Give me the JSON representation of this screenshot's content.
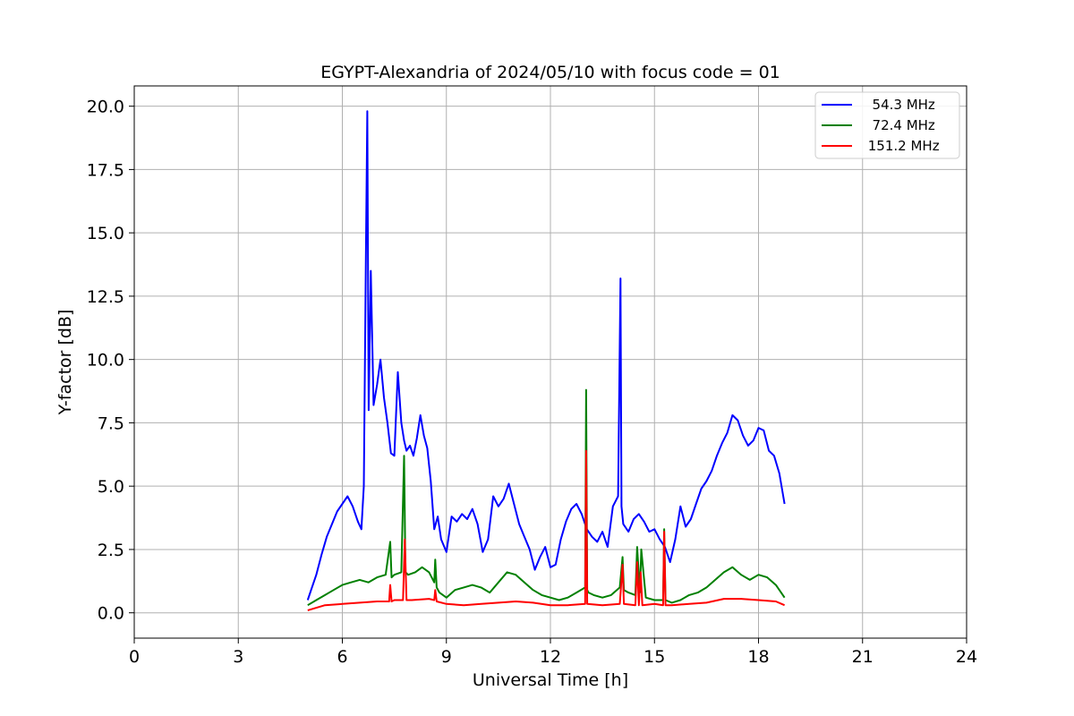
{
  "chart_data": {
    "type": "line",
    "title": "EGYPT-Alexandria of 2024/05/10 with focus code = 01",
    "xlabel": "Universal Time [h]",
    "ylabel": "Y-factor [dB]",
    "xlim": [
      0,
      24
    ],
    "ylim": [
      -1.0,
      20.8
    ],
    "xticks": [
      0,
      3,
      6,
      9,
      12,
      15,
      18,
      21,
      24
    ],
    "xtick_labels": [
      "0",
      "3",
      "6",
      "9",
      "12",
      "15",
      "18",
      "21",
      "24"
    ],
    "yticks": [
      0,
      2.5,
      5,
      7.5,
      10,
      12.5,
      15,
      17.5,
      20
    ],
    "ytick_labels": [
      "0.0",
      "2.5",
      "5.0",
      "7.5",
      "10.0",
      "12.5",
      "15.0",
      "17.5",
      "20.0"
    ],
    "grid": true,
    "legend_position": "top-right",
    "series": [
      {
        "name": "  54.3 MHz",
        "color": "#0000ff",
        "x": [
          5.0,
          5.1,
          5.25,
          5.4,
          5.55,
          5.7,
          5.85,
          6.0,
          6.15,
          6.3,
          6.45,
          6.55,
          6.62,
          6.68,
          6.72,
          6.76,
          6.82,
          6.9,
          7.0,
          7.1,
          7.2,
          7.3,
          7.4,
          7.5,
          7.6,
          7.7,
          7.78,
          7.85,
          7.95,
          8.05,
          8.15,
          8.25,
          8.35,
          8.45,
          8.55,
          8.65,
          8.75,
          8.85,
          9.0,
          9.15,
          9.3,
          9.45,
          9.6,
          9.75,
          9.9,
          10.05,
          10.2,
          10.35,
          10.5,
          10.65,
          10.8,
          10.95,
          11.1,
          11.25,
          11.4,
          11.55,
          11.7,
          11.85,
          12.0,
          12.15,
          12.3,
          12.45,
          12.6,
          12.75,
          12.9,
          13.05,
          13.2,
          13.35,
          13.5,
          13.65,
          13.8,
          13.95,
          14.02,
          14.05,
          14.1,
          14.25,
          14.4,
          14.55,
          14.7,
          14.85,
          15.0,
          15.15,
          15.3,
          15.45,
          15.6,
          15.75,
          15.9,
          16.05,
          16.2,
          16.35,
          16.5,
          16.65,
          16.8,
          16.95,
          17.1,
          17.25,
          17.4,
          17.55,
          17.7,
          17.85,
          18.0,
          18.15,
          18.3,
          18.45,
          18.6,
          18.75
        ],
        "values": [
          0.5,
          0.9,
          1.5,
          2.3,
          3.0,
          3.5,
          4.0,
          4.3,
          4.6,
          4.2,
          3.6,
          3.3,
          5.0,
          14.0,
          19.8,
          8.0,
          13.5,
          8.2,
          9.0,
          10.0,
          8.5,
          7.5,
          6.3,
          6.2,
          9.5,
          7.5,
          6.8,
          6.4,
          6.6,
          6.2,
          6.9,
          7.8,
          7.0,
          6.5,
          5.2,
          3.3,
          3.8,
          2.9,
          2.4,
          3.8,
          3.6,
          3.9,
          3.7,
          4.1,
          3.5,
          2.4,
          2.9,
          4.6,
          4.2,
          4.5,
          5.1,
          4.3,
          3.5,
          3.0,
          2.5,
          1.7,
          2.2,
          2.6,
          1.8,
          1.9,
          2.9,
          3.6,
          4.1,
          4.3,
          3.9,
          3.3,
          3.0,
          2.8,
          3.2,
          2.6,
          4.2,
          4.6,
          13.2,
          4.2,
          3.5,
          3.2,
          3.7,
          3.9,
          3.6,
          3.2,
          3.3,
          2.9,
          2.6,
          2.0,
          2.9,
          4.2,
          3.4,
          3.7,
          4.3,
          4.9,
          5.2,
          5.6,
          6.2,
          6.7,
          7.1,
          7.8,
          7.6,
          7.0,
          6.6,
          6.8,
          7.3,
          7.2,
          6.4,
          6.2,
          5.5,
          4.3
        ]
      },
      {
        "name": "  72.4 MHz",
        "color": "#008000",
        "x": [
          5.0,
          5.25,
          5.5,
          5.75,
          6.0,
          6.25,
          6.5,
          6.75,
          7.0,
          7.25,
          7.38,
          7.42,
          7.5,
          7.7,
          7.78,
          7.82,
          7.9,
          8.1,
          8.3,
          8.5,
          8.65,
          8.68,
          8.72,
          8.8,
          9.0,
          9.25,
          9.5,
          9.75,
          10.0,
          10.25,
          10.5,
          10.75,
          11.0,
          11.25,
          11.5,
          11.75,
          12.0,
          12.25,
          12.5,
          12.75,
          13.0,
          13.03,
          13.06,
          13.1,
          13.25,
          13.5,
          13.75,
          14.0,
          14.08,
          14.12,
          14.25,
          14.45,
          14.5,
          14.58,
          14.62,
          14.75,
          15.0,
          15.25,
          15.28,
          15.32,
          15.5,
          15.75,
          16.0,
          16.25,
          16.5,
          16.75,
          17.0,
          17.25,
          17.5,
          17.75,
          18.0,
          18.25,
          18.5,
          18.75
        ],
        "values": [
          0.3,
          0.5,
          0.7,
          0.9,
          1.1,
          1.2,
          1.3,
          1.2,
          1.4,
          1.5,
          2.8,
          1.4,
          1.5,
          1.6,
          6.2,
          1.6,
          1.5,
          1.6,
          1.8,
          1.6,
          1.2,
          2.1,
          1.0,
          0.8,
          0.6,
          0.9,
          1.0,
          1.1,
          1.0,
          0.8,
          1.2,
          1.6,
          1.5,
          1.2,
          0.9,
          0.7,
          0.6,
          0.5,
          0.6,
          0.8,
          1.0,
          8.8,
          0.9,
          0.8,
          0.7,
          0.6,
          0.7,
          1.0,
          2.2,
          0.9,
          0.8,
          0.7,
          2.6,
          0.8,
          2.5,
          0.6,
          0.5,
          0.5,
          3.3,
          0.5,
          0.4,
          0.5,
          0.7,
          0.8,
          1.0,
          1.3,
          1.6,
          1.8,
          1.5,
          1.3,
          1.5,
          1.4,
          1.1,
          0.6
        ]
      },
      {
        "name": " 151.2 MHz",
        "color": "#ff0000",
        "x": [
          5.0,
          5.5,
          6.0,
          6.5,
          7.0,
          7.35,
          7.38,
          7.42,
          7.5,
          7.75,
          7.8,
          7.85,
          8.0,
          8.5,
          8.65,
          8.68,
          8.72,
          9.0,
          9.5,
          10.0,
          10.5,
          11.0,
          11.5,
          12.0,
          12.5,
          13.0,
          13.03,
          13.06,
          13.5,
          14.0,
          14.08,
          14.12,
          14.45,
          14.5,
          14.55,
          14.6,
          14.65,
          15.0,
          15.25,
          15.28,
          15.32,
          15.5,
          16.0,
          16.5,
          17.0,
          17.5,
          18.0,
          18.5,
          18.75
        ],
        "values": [
          0.1,
          0.3,
          0.35,
          0.4,
          0.45,
          0.45,
          1.1,
          0.45,
          0.5,
          0.5,
          2.9,
          0.5,
          0.5,
          0.55,
          0.5,
          0.9,
          0.45,
          0.35,
          0.3,
          0.35,
          0.4,
          0.45,
          0.4,
          0.3,
          0.3,
          0.35,
          6.4,
          0.35,
          0.3,
          0.35,
          1.9,
          0.35,
          0.3,
          2.0,
          0.3,
          1.6,
          0.3,
          0.35,
          0.3,
          3.2,
          0.3,
          0.3,
          0.35,
          0.4,
          0.55,
          0.55,
          0.5,
          0.45,
          0.3
        ]
      }
    ]
  }
}
